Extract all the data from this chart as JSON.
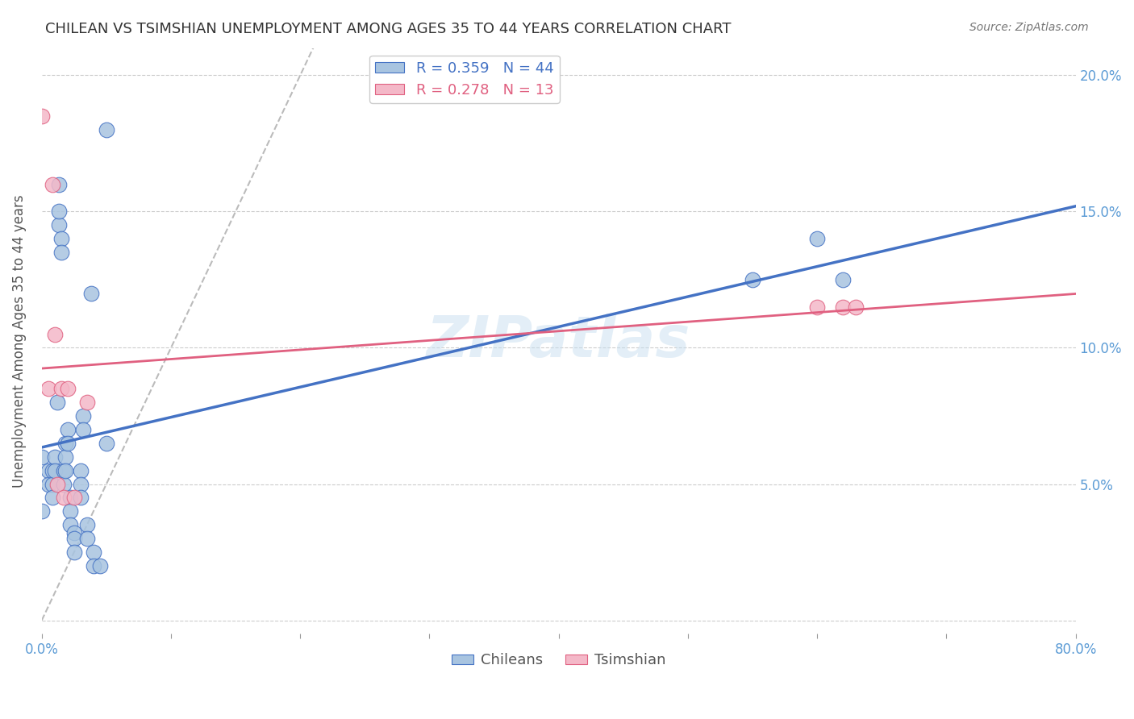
{
  "title": "CHILEAN VS TSIMSHIAN UNEMPLOYMENT AMONG AGES 35 TO 44 YEARS CORRELATION CHART",
  "source": "Source: ZipAtlas.com",
  "xlabel": "",
  "ylabel": "Unemployment Among Ages 35 to 44 years",
  "xlim": [
    0.0,
    0.8
  ],
  "ylim": [
    -0.005,
    0.21
  ],
  "xticks": [
    0.0,
    0.1,
    0.2,
    0.3,
    0.4,
    0.5,
    0.6,
    0.7,
    0.8
  ],
  "xticklabels": [
    "0.0%",
    "",
    "",
    "",
    "",
    "",
    "",
    "",
    "80.0%"
  ],
  "yticks": [
    0.0,
    0.05,
    0.1,
    0.15,
    0.2
  ],
  "yticklabels": [
    "",
    "5.0%",
    "10.0%",
    "15.0%",
    "20.0%"
  ],
  "chilean_x": [
    0.0,
    0.0,
    0.005,
    0.005,
    0.008,
    0.008,
    0.008,
    0.01,
    0.01,
    0.012,
    0.013,
    0.013,
    0.013,
    0.015,
    0.015,
    0.017,
    0.017,
    0.018,
    0.018,
    0.018,
    0.02,
    0.02,
    0.022,
    0.022,
    0.022,
    0.025,
    0.025,
    0.025,
    0.03,
    0.03,
    0.03,
    0.032,
    0.032,
    0.035,
    0.035,
    0.038,
    0.04,
    0.04,
    0.045,
    0.05,
    0.05,
    0.55,
    0.6,
    0.62
  ],
  "chilean_y": [
    0.06,
    0.04,
    0.055,
    0.05,
    0.055,
    0.05,
    0.045,
    0.06,
    0.055,
    0.08,
    0.145,
    0.16,
    0.15,
    0.14,
    0.135,
    0.055,
    0.05,
    0.065,
    0.06,
    0.055,
    0.07,
    0.065,
    0.045,
    0.04,
    0.035,
    0.032,
    0.03,
    0.025,
    0.055,
    0.05,
    0.045,
    0.075,
    0.07,
    0.035,
    0.03,
    0.12,
    0.025,
    0.02,
    0.02,
    0.065,
    0.18,
    0.125,
    0.14,
    0.125
  ],
  "tsimshian_x": [
    0.0,
    0.005,
    0.008,
    0.01,
    0.012,
    0.015,
    0.017,
    0.02,
    0.025,
    0.035,
    0.6,
    0.62,
    0.63
  ],
  "tsimshian_y": [
    0.185,
    0.085,
    0.16,
    0.105,
    0.05,
    0.085,
    0.045,
    0.085,
    0.045,
    0.08,
    0.115,
    0.115,
    0.115
  ],
  "chilean_R": 0.359,
  "chilean_N": 44,
  "tsimshian_R": 0.278,
  "tsimshian_N": 13,
  "blue_color": "#a8c4e0",
  "blue_line_color": "#4472C4",
  "pink_color": "#f4b8c8",
  "pink_line_color": "#E06080",
  "watermark": "ZIPatlas",
  "background_color": "#ffffff",
  "grid_color": "#cccccc",
  "title_color": "#333333",
  "axis_label_color": "#555555",
  "tick_color": "#5b9bd5",
  "right_tick_color": "#5b9bd5"
}
